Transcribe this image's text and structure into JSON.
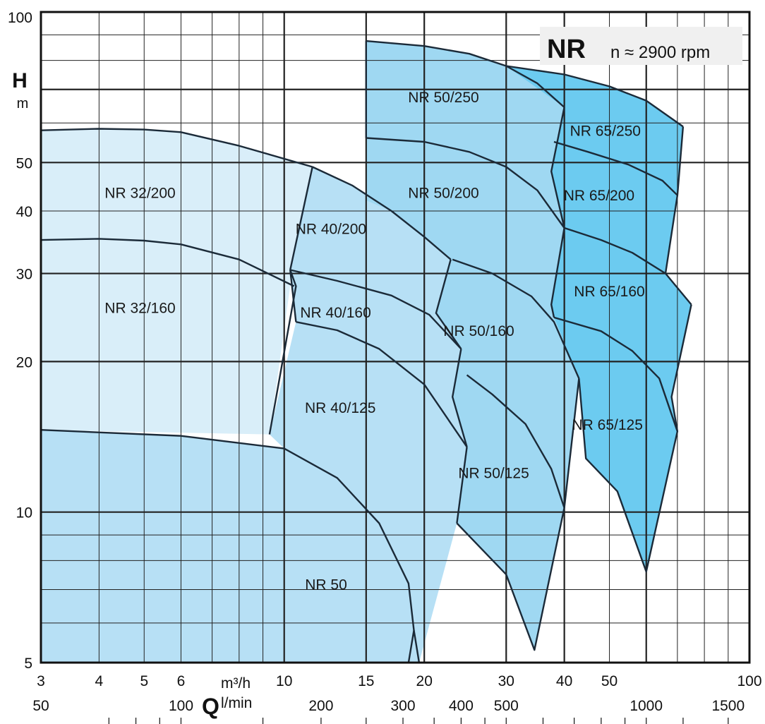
{
  "chart_data": {
    "type": "area",
    "title": "NR",
    "subtitle": "n ≈ 2900 rpm",
    "ylabel": "H",
    "yunit": "m",
    "xlabel": "Q",
    "xunit_primary": "m³/h",
    "xunit_secondary": "l/min",
    "x_scale": "log",
    "y_scale": "log",
    "xlim": [
      3,
      100
    ],
    "ylim": [
      5,
      100
    ],
    "x_ticks": [
      "3",
      "4",
      "5",
      "6",
      "10",
      "15",
      "20",
      "30",
      "40",
      "50",
      "100"
    ],
    "x_tick_values": [
      3,
      4,
      5,
      6,
      10,
      15,
      20,
      30,
      40,
      50,
      100
    ],
    "x_secondary_ticks": [
      "50",
      "100",
      "200",
      "300",
      "400",
      "500",
      "1000",
      "1500"
    ],
    "x_secondary_tick_values": [
      50,
      100,
      200,
      300,
      400,
      500,
      1000,
      1500
    ],
    "y_ticks": [
      "5",
      "10",
      "20",
      "30",
      "40",
      "50",
      "100"
    ],
    "y_tick_values": [
      5,
      10,
      20,
      30,
      40,
      50,
      100
    ],
    "grid": true,
    "regions": [
      {
        "name": "NR 32/200",
        "color": "#d9eef9",
        "top_curve": [
          [
            3,
            58
          ],
          [
            4,
            58.4
          ],
          [
            5,
            58.2
          ],
          [
            6,
            57.5
          ],
          [
            8,
            54
          ],
          [
            11.5,
            49
          ]
        ],
        "label_at": [
          4.9,
          42.5
        ]
      },
      {
        "name": "NR 32/160",
        "color": "#d9eef9",
        "top_curve": [
          [
            3,
            35
          ],
          [
            4,
            35.2
          ],
          [
            5,
            34.9
          ],
          [
            6,
            34.3
          ],
          [
            8,
            32
          ],
          [
            10.5,
            28.3
          ]
        ],
        "label_at": [
          4.9,
          25
        ]
      },
      {
        "name": "NR 50",
        "color": "#b7e0f5",
        "top_curve": [
          [
            3,
            14.6
          ],
          [
            6,
            14.2
          ],
          [
            10,
            13.4
          ],
          [
            13,
            11.7
          ],
          [
            16,
            9.5
          ],
          [
            18.5,
            7.2
          ],
          [
            19,
            5.8
          ],
          [
            18.5,
            5
          ]
        ],
        "label_at": [
          12.3,
          7
        ]
      },
      {
        "name": "NR 40/200",
        "color": "#b7e0f5",
        "top_curve": [
          [
            11.5,
            49
          ],
          [
            14,
            45
          ],
          [
            17,
            40
          ],
          [
            20,
            35.5
          ],
          [
            22.8,
            32
          ]
        ],
        "label_at": [
          12.6,
          36
        ]
      },
      {
        "name": "NR 40/160",
        "color": "#b7e0f5",
        "top_curve": [
          [
            10.3,
            30.5
          ],
          [
            13,
            29
          ],
          [
            17,
            27.1
          ],
          [
            20.5,
            24.8
          ],
          [
            24,
            21.2
          ]
        ],
        "label_at": [
          12.9,
          24.5
        ]
      },
      {
        "name": "NR 40/125",
        "color": "#b7e0f5",
        "top_curve": [
          [
            10.6,
            24
          ],
          [
            13,
            23.1
          ],
          [
            16,
            21.2
          ],
          [
            20,
            18
          ],
          [
            24.7,
            13.5
          ]
        ],
        "label_at": [
          13.2,
          15.8
        ]
      },
      {
        "name": "NR 50/250",
        "color": "#9fd8f2",
        "top_curve": [
          [
            15,
            87.5
          ],
          [
            20,
            85.5
          ],
          [
            25,
            82.5
          ],
          [
            30,
            78
          ],
          [
            35,
            72
          ],
          [
            40,
            64.5
          ]
        ],
        "label_at": [
          22,
          66
        ]
      },
      {
        "name": "NR 50/200",
        "color": "#9fd8f2",
        "top_curve": [
          [
            15,
            56
          ],
          [
            20,
            55
          ],
          [
            25,
            52.5
          ],
          [
            30,
            49
          ],
          [
            35,
            44
          ],
          [
            40,
            37
          ]
        ],
        "label_at": [
          22,
          42.5
        ]
      },
      {
        "name": "NR 50/160",
        "color": "#9fd8f2",
        "top_curve": [
          [
            23,
            32
          ],
          [
            28,
            30
          ],
          [
            34,
            27
          ],
          [
            38,
            24
          ],
          [
            43,
            18.5
          ]
        ],
        "label_at": [
          26.2,
          22.5
        ]
      },
      {
        "name": "NR 50/125",
        "color": "#9fd8f2",
        "top_curve": [
          [
            24.7,
            18.8
          ],
          [
            28,
            17.2
          ],
          [
            33,
            15
          ],
          [
            37.5,
            12.2
          ],
          [
            40,
            10.2
          ]
        ],
        "label_at": [
          28.2,
          11.7
        ]
      },
      {
        "name": "NR 65/250",
        "color": "#6ccbf0",
        "top_curve": [
          [
            30,
            78
          ],
          [
            40,
            75
          ],
          [
            50,
            71
          ],
          [
            60,
            66.5
          ],
          [
            72,
            59
          ]
        ],
        "label_at": [
          49,
          56.5
        ]
      },
      {
        "name": "NR 65/200",
        "color": "#6ccbf0",
        "top_curve": [
          [
            38,
            55
          ],
          [
            45,
            52.5
          ],
          [
            55,
            49.5
          ],
          [
            65,
            46
          ],
          [
            70,
            43
          ]
        ],
        "label_at": [
          47.5,
          42
        ]
      },
      {
        "name": "NR 65/160",
        "color": "#6ccbf0",
        "top_curve": [
          [
            40,
            37
          ],
          [
            48,
            35
          ],
          [
            56,
            33
          ],
          [
            66,
            30
          ],
          [
            75,
            26
          ]
        ],
        "label_at": [
          50,
          27
        ]
      },
      {
        "name": "NR 65/125",
        "color": "#6ccbf0",
        "top_curve": [
          [
            38,
            24.5
          ],
          [
            48,
            23
          ],
          [
            56,
            21
          ],
          [
            64,
            18.5
          ],
          [
            70,
            14.5
          ]
        ],
        "label_at": [
          49.5,
          14.6
        ]
      }
    ]
  }
}
